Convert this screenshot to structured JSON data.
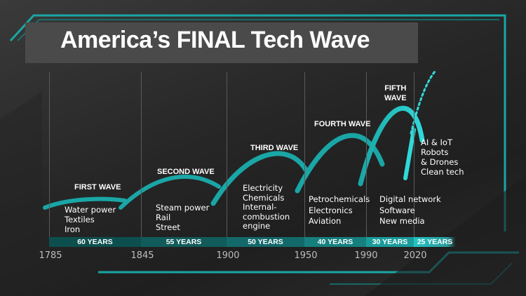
{
  "title": "America’s FINAL Tech Wave",
  "waves": [
    {
      "label": "FIRST WAVE",
      "items": [
        "Water power",
        "Textiles",
        "Iron"
      ],
      "duration": "60 YEARS"
    },
    {
      "label": "SECOND WAVE",
      "items": [
        "Steam power",
        "Rail",
        "Street"
      ],
      "duration": "55 YEARS"
    },
    {
      "label": "THIRD WAVE",
      "items": [
        "Electricity",
        "Chemicals",
        "Internal-",
        "combustion",
        "engine"
      ],
      "duration": "50 YEARS"
    },
    {
      "label": "FOURTH WAVE",
      "items": [
        "Petrochemicals",
        "Electronics",
        "Aviation"
      ],
      "duration": "40 YEARS"
    },
    {
      "label_lines": [
        "FIFTH",
        "WAVE"
      ],
      "items": [
        "Digital network",
        "Software",
        "New media"
      ],
      "duration": "30 YEARS"
    },
    {
      "items": [
        "AI & IoT",
        "Robots",
        "& Drones",
        "Clean tech"
      ],
      "duration": "25 YEARS"
    }
  ],
  "years": [
    "1785",
    "1845",
    "1900",
    "1950",
    "1990",
    "2020"
  ],
  "colors": {
    "accent": "#1aa6a6",
    "band_dark": "#0d4f4f",
    "band_light": "#23c4c4",
    "text": "#ffffff"
  }
}
